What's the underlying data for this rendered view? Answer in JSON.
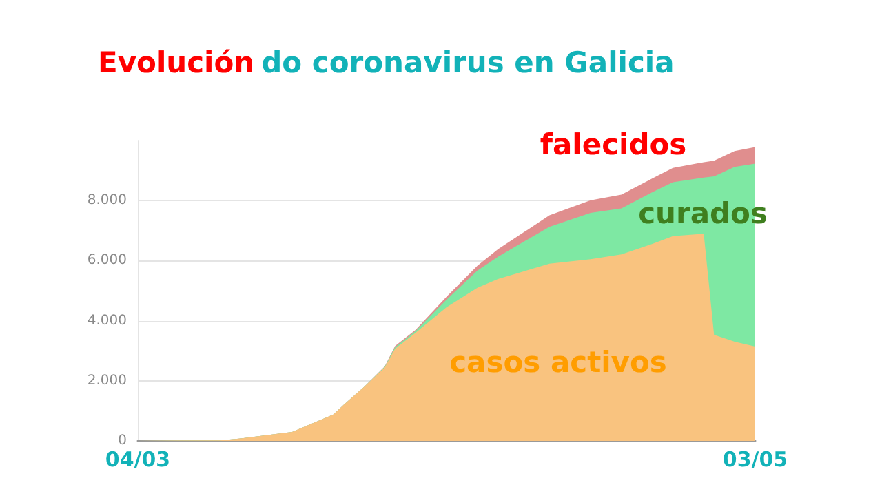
{
  "chart_data": {
    "type": "area",
    "title": "Evolución do coronavirus en Galicia",
    "stacked": true,
    "legend": false,
    "grid": "y",
    "x": [
      "--03-04",
      "--03-12",
      "--03-14",
      "--03-19",
      "--03-23",
      "--03-24",
      "--03-26",
      "--03-28",
      "--03-29",
      "--03-31",
      "--04-03",
      "--04-06",
      "--04-08",
      "--04-13",
      "--04-17",
      "--04-20",
      "--04-23",
      "--04-25",
      "--04-28",
      "--04-29",
      "--05-01",
      "--05-03"
    ],
    "xlim": [
      "--03-04",
      "--05-03"
    ],
    "xticks": [
      {
        "value": "--03-04",
        "label": "04/03"
      },
      {
        "value": "--05-03",
        "label": "03/05"
      }
    ],
    "ylim": [
      0,
      10000
    ],
    "yticks": [
      {
        "value": 0,
        "label": "0"
      },
      {
        "value": 2000,
        "label": "2.000"
      },
      {
        "value": 4000,
        "label": "4.000"
      },
      {
        "value": 6000,
        "label": "6.000"
      },
      {
        "value": 8000,
        "label": "8.000"
      }
    ],
    "series": [
      {
        "name": "casos activos",
        "color": "#f9c37f",
        "values": [
          0,
          20,
          80,
          300,
          880,
          1200,
          1800,
          2450,
          3070,
          3600,
          4450,
          5100,
          5390,
          5900,
          6050,
          6210,
          6560,
          6820,
          6900,
          3530,
          3300,
          3140
        ]
      },
      {
        "name": "curados",
        "color": "#7ee8a3",
        "values": [
          0,
          0,
          0,
          0,
          0,
          0,
          0,
          20,
          50,
          60,
          250,
          570,
          740,
          1230,
          1540,
          1530,
          1720,
          1790,
          1870,
          5280,
          5820,
          6090
        ]
      },
      {
        "name": "falecidos",
        "color": "#e08e8e",
        "values": [
          0,
          0,
          0,
          0,
          0,
          0,
          0,
          10,
          40,
          40,
          100,
          160,
          250,
          380,
          420,
          460,
          460,
          480,
          510,
          520,
          530,
          550
        ]
      }
    ]
  }
}
